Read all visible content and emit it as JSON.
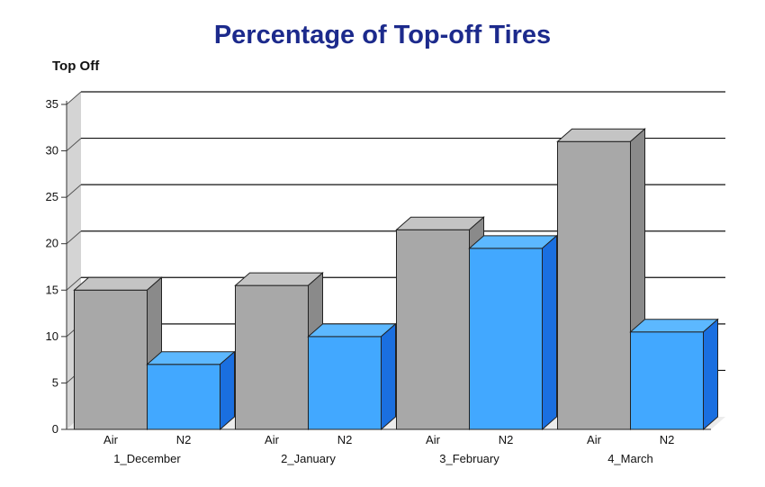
{
  "chart_data": {
    "type": "bar",
    "title": "Percentage of Top-off Tires",
    "ylabel": "Top Off",
    "xlabel": "",
    "categories": [
      "1_December",
      "2_January",
      "3_February",
      "4_March"
    ],
    "series": [
      {
        "name": "Air",
        "values": [
          15,
          15.5,
          21.5,
          31
        ],
        "color": "#a8a8a8",
        "side_color": "#8a8a8a",
        "top_color": "#c4c4c4"
      },
      {
        "name": "N2",
        "values": [
          7,
          10,
          19.5,
          10.5
        ],
        "color": "#42a8ff",
        "side_color": "#1a6fe0",
        "top_color": "#5cb8ff"
      }
    ],
    "ylim": [
      0,
      35
    ],
    "yticks": [
      0,
      5,
      10,
      15,
      20,
      25,
      30,
      35
    ],
    "grid": true,
    "style": "3d-bar"
  }
}
